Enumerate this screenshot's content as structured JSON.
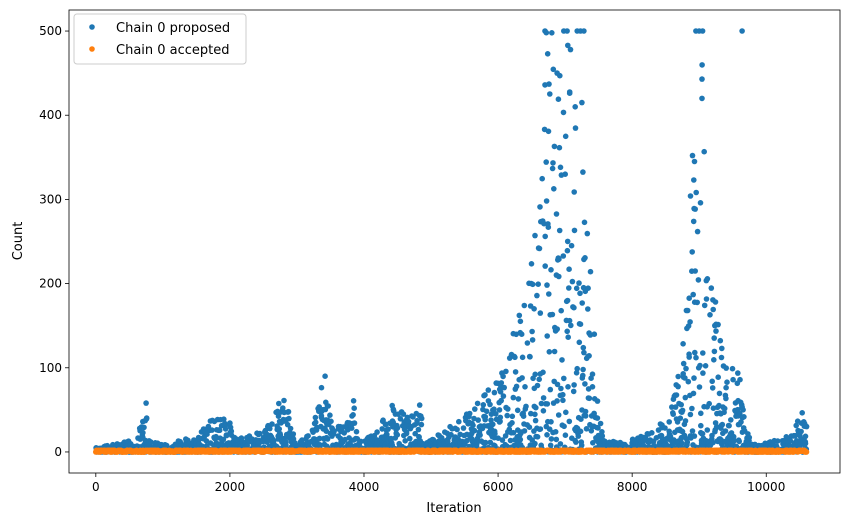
{
  "chart_data": {
    "type": "scatter",
    "title": "",
    "xlabel": "Iteration",
    "ylabel": "Count",
    "xlim": [
      -400,
      11100
    ],
    "ylim": [
      -25,
      525
    ],
    "xticks": [
      0,
      2000,
      4000,
      6000,
      8000,
      10000
    ],
    "xtick_labels": [
      "0",
      "2000",
      "4000",
      "6000",
      "8000",
      "10000"
    ],
    "yticks": [
      0,
      100,
      200,
      300,
      400,
      500
    ],
    "ytick_labels": [
      "0",
      "100",
      "200",
      "300",
      "400",
      "500"
    ],
    "grid": false,
    "legend_position": "top-left",
    "series": [
      {
        "name": "Chain 0 proposed",
        "color": "#1f77b4",
        "marker": "circle",
        "envelope": {
          "x": [
            0,
            200,
            600,
            750,
            800,
            1000,
            1500,
            1700,
            1800,
            2000,
            2100,
            2500,
            2700,
            2750,
            2900,
            3000,
            3200,
            3400,
            3500,
            3600,
            3800,
            3850,
            3900,
            4200,
            4400,
            4600,
            4800,
            4850,
            4900,
            5200,
            5500,
            5800,
            6100,
            6400,
            6600,
            6750,
            6900,
            7000,
            7100,
            7200,
            7300,
            7400,
            7500,
            7600,
            7800,
            8000,
            8300,
            8500,
            8700,
            8850,
            8900,
            8950,
            9000,
            9050,
            9100,
            9200,
            9300,
            9400,
            9500,
            9600,
            9700,
            9800,
            10000,
            10200,
            10400,
            10550,
            10600
          ],
          "y": [
            5,
            8,
            15,
            58,
            12,
            10,
            18,
            40,
            47,
            35,
            15,
            25,
            55,
            78,
            40,
            10,
            22,
            90,
            40,
            30,
            45,
            70,
            10,
            25,
            60,
            45,
            50,
            60,
            10,
            25,
            45,
            70,
            100,
            200,
            300,
            500,
            500,
            450,
            420,
            400,
            335,
            200,
            40,
            15,
            12,
            15,
            25,
            40,
            100,
            200,
            350,
            320,
            500,
            500,
            250,
            200,
            150,
            110,
            100,
            120,
            25,
            10,
            12,
            15,
            25,
            62,
            30
          ],
          "points_per_iteration": 1,
          "baseline": 0
        },
        "outliers": [
          {
            "x": 6700,
            "y": 500
          },
          {
            "x": 6720,
            "y": 498
          },
          {
            "x": 6740,
            "y": 473
          },
          {
            "x": 6700,
            "y": 436
          },
          {
            "x": 6760,
            "y": 437
          },
          {
            "x": 6980,
            "y": 500
          },
          {
            "x": 7030,
            "y": 500
          },
          {
            "x": 7180,
            "y": 500
          },
          {
            "x": 7230,
            "y": 500
          },
          {
            "x": 7280,
            "y": 500
          },
          {
            "x": 6880,
            "y": 450
          },
          {
            "x": 6920,
            "y": 447
          },
          {
            "x": 7040,
            "y": 483
          },
          {
            "x": 7080,
            "y": 478
          },
          {
            "x": 6900,
            "y": 419
          },
          {
            "x": 7150,
            "y": 410
          },
          {
            "x": 7250,
            "y": 415
          },
          {
            "x": 8950,
            "y": 500
          },
          {
            "x": 9000,
            "y": 500
          },
          {
            "x": 9050,
            "y": 500
          },
          {
            "x": 9640,
            "y": 500
          },
          {
            "x": 8900,
            "y": 352
          },
          {
            "x": 8930,
            "y": 345
          },
          {
            "x": 8920,
            "y": 323
          },
          {
            "x": 8870,
            "y": 304
          },
          {
            "x": 9020,
            "y": 296
          },
          {
            "x": 6550,
            "y": 257
          },
          {
            "x": 3420,
            "y": 90
          },
          {
            "x": 750,
            "y": 58
          }
        ]
      },
      {
        "name": "Chain 0 accepted",
        "color": "#ff7f0e",
        "marker": "circle",
        "x_range": [
          0,
          10600
        ],
        "y_values": [
          0,
          1,
          2
        ]
      }
    ]
  }
}
